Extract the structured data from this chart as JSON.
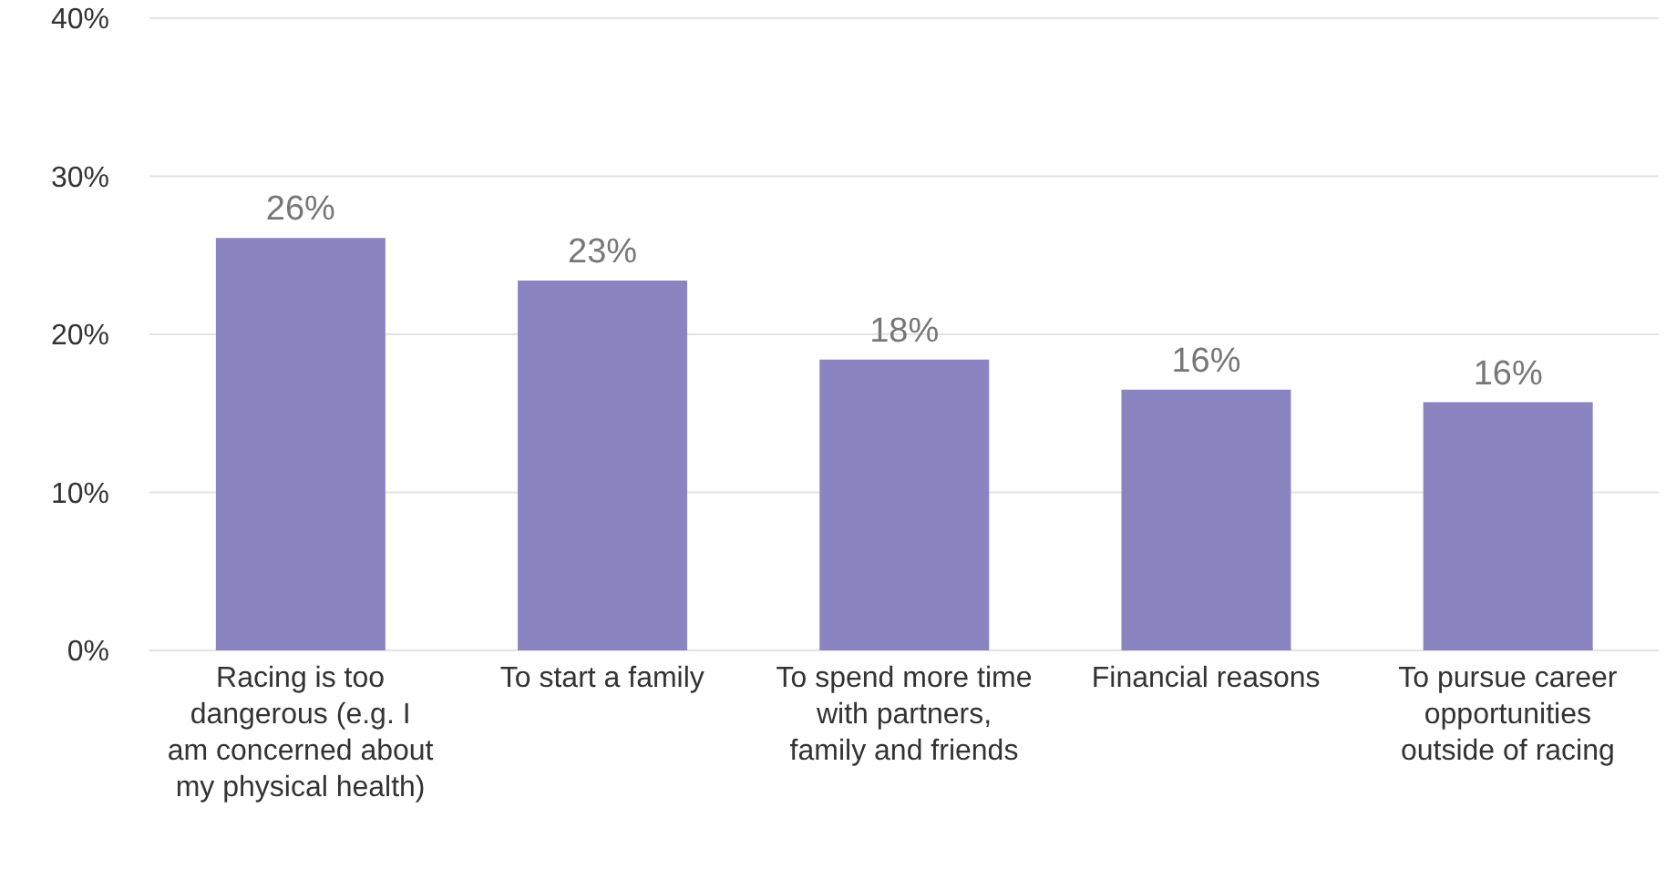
{
  "chart_data": {
    "type": "bar",
    "categories": [
      "Racing is too dangerous (e.g. I am concerned about my physical health)",
      "To start a family",
      "To spend more time with partners, family and friends",
      "Financial reasons",
      "To pursue career opportunities outside of racing"
    ],
    "values": [
      26.1,
      23.4,
      18.4,
      16.5,
      15.7
    ],
    "value_labels": [
      "26%",
      "23%",
      "18%",
      "16%",
      "16%"
    ],
    "color": "#8a84c0",
    "ylim": [
      0,
      40
    ],
    "yticks": [
      {
        "value": 0,
        "label": "0%"
      },
      {
        "value": 10,
        "label": "10%"
      },
      {
        "value": 20,
        "label": "20%"
      },
      {
        "value": 30,
        "label": "30%"
      },
      {
        "value": 40,
        "label": "40%"
      }
    ],
    "grid": "y"
  }
}
